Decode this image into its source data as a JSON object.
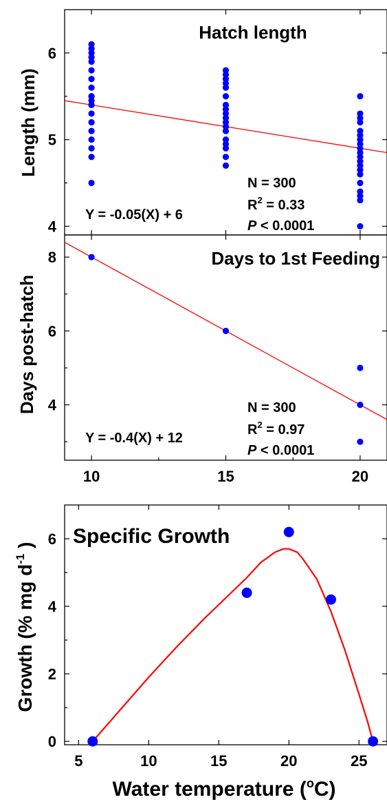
{
  "colors": {
    "point": "#0000ff",
    "fit_line": "#ff0000",
    "axis": "#000000"
  },
  "chart_data": [
    {
      "type": "scatter",
      "title": "Hatch length",
      "ylabel": "Length (mm)",
      "xlabel": "",
      "xlim": [
        9,
        21
      ],
      "ylim": [
        3.9,
        6.5
      ],
      "yticks": [
        4,
        5,
        6
      ],
      "x_tick_labels_shown": false,
      "series": [
        {
          "x": [
            10,
            10,
            10,
            10,
            10,
            10,
            10,
            10,
            10,
            10,
            10,
            10,
            10,
            10,
            10,
            10,
            10,
            10,
            10,
            10,
            15,
            15,
            15,
            15,
            15,
            15,
            15,
            15,
            15,
            15,
            15,
            15,
            15,
            15,
            15,
            15,
            15,
            15,
            20,
            20,
            20,
            20,
            20,
            20,
            20,
            20,
            20,
            20,
            20,
            20,
            20,
            20,
            20,
            20,
            20,
            20,
            20,
            20
          ],
          "y": [
            6.1,
            6.0,
            5.9,
            5.8,
            5.7,
            5.6,
            5.5,
            5.5,
            5.4,
            5.4,
            5.3,
            5.2,
            5.1,
            5.0,
            4.9,
            4.8,
            4.5,
            6.05,
            5.95,
            5.45,
            5.8,
            5.7,
            5.6,
            5.5,
            5.4,
            5.3,
            5.2,
            5.1,
            5.0,
            4.9,
            4.8,
            4.7,
            5.75,
            5.65,
            5.35,
            5.25,
            5.15,
            4.95,
            5.5,
            5.3,
            5.2,
            5.1,
            5.0,
            4.9,
            4.8,
            4.7,
            4.6,
            4.5,
            4.4,
            4.3,
            4.0,
            5.25,
            4.95,
            4.85,
            4.75,
            4.65,
            4.35,
            5.05
          ]
        }
      ],
      "fit": {
        "slope": -0.05,
        "intercept": 5.9,
        "label": "Y = -0.05(X) + 6"
      },
      "stats": {
        "n": "N = 300",
        "r2_base": "R",
        "r2_sup": "2",
        "r2_val": " = 0.33",
        "p_italic": "P",
        "p_rest": " < 0.0001"
      }
    },
    {
      "type": "scatter",
      "title": "Days to 1st Feeding",
      "ylabel": "Days post-hatch",
      "xlabel": "",
      "xlim": [
        9,
        21
      ],
      "ylim": [
        2.5,
        8.6
      ],
      "xticks": [
        10,
        15,
        20
      ],
      "yticks": [
        4,
        6,
        8
      ],
      "series": [
        {
          "x": [
            10,
            15,
            20,
            20,
            20
          ],
          "y": [
            8,
            6,
            5,
            4,
            3
          ]
        }
      ],
      "fit": {
        "slope": -0.4,
        "intercept": 12,
        "label": "Y = -0.4(X) + 12"
      },
      "stats": {
        "n": "N = 300",
        "r2_base": "R",
        "r2_sup": "2",
        "r2_val": " = 0.97",
        "p_italic": "P",
        "p_rest": " < 0.0001"
      }
    },
    {
      "type": "scatter",
      "title": "Specific Growth",
      "ylabel_parts": {
        "pre": "Growth (% mg d",
        "sup": "-1",
        "post": " )"
      },
      "xlabel_parts": {
        "pre": "Water temperature (",
        "sup": "o",
        "post": "C)"
      },
      "xlim": [
        4,
        27
      ],
      "ylim": [
        -0.1,
        7.0
      ],
      "xticks": [
        5,
        10,
        15,
        20,
        25
      ],
      "yticks": [
        0,
        2,
        4,
        6
      ],
      "series": [
        {
          "x": [
            6,
            17,
            20,
            23,
            26
          ],
          "y": [
            0,
            4.4,
            6.2,
            4.2,
            0
          ]
        }
      ],
      "curve": {
        "x": [
          6,
          8,
          10,
          12,
          14,
          16,
          17,
          18,
          19,
          19.6,
          20,
          20.6,
          21,
          22,
          23,
          24,
          25,
          25.6,
          26
        ],
        "y": [
          0,
          0.95,
          1.9,
          2.8,
          3.65,
          4.45,
          4.85,
          5.3,
          5.6,
          5.7,
          5.7,
          5.6,
          5.4,
          4.8,
          3.85,
          2.7,
          1.4,
          0.6,
          0
        ]
      }
    }
  ]
}
